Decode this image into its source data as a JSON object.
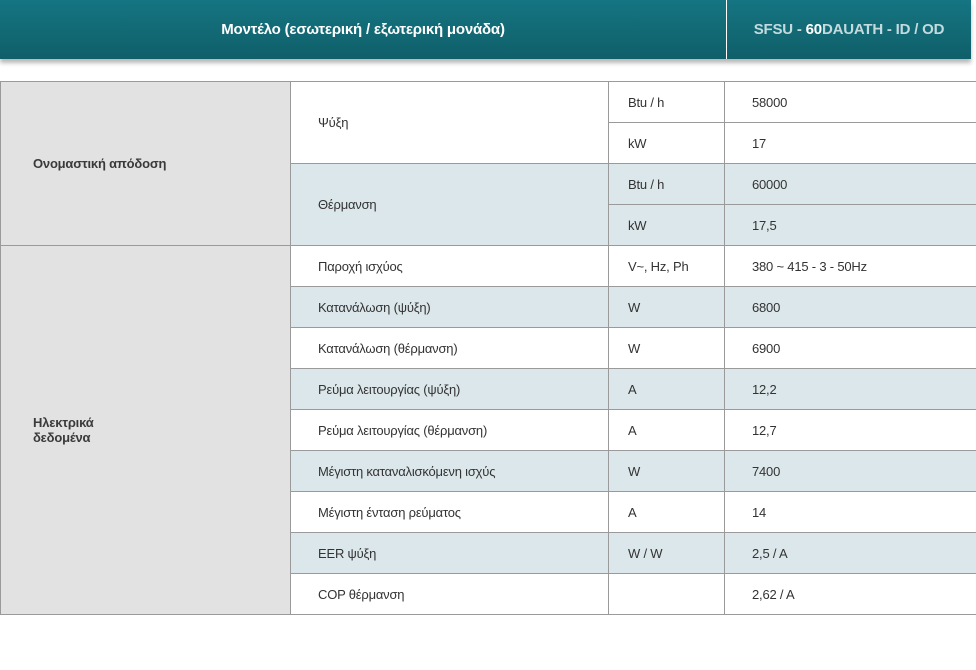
{
  "header": {
    "title": "Μοντέλο (εσωτερική / εξωτερική μονάδα)",
    "model_prefix": "SFSU - ",
    "model_bold": "60",
    "model_suffix": "DAUATH - ID / OD"
  },
  "groups": {
    "rated_performance": "Ονομαστική απόδοση",
    "electrical_data_line1": "Ηλεκτρικά",
    "electrical_data_line2": "δεδομένα"
  },
  "rows": [
    {
      "param": "Ψύξη",
      "unit": "Btu / h",
      "value": "58000"
    },
    {
      "unit": "kW",
      "value": "17"
    },
    {
      "param": "Θέρμανση",
      "unit": "Btu / h",
      "value": "60000"
    },
    {
      "unit": "kW",
      "value": "17,5"
    },
    {
      "param": "Παροχή ισχύος",
      "unit": "V~, Hz, Ph",
      "value": "380 ~ 415 - 3 - 50Hz"
    },
    {
      "param": "Κατανάλωση (ψύξη)",
      "unit": "W",
      "value": "6800"
    },
    {
      "param": "Κατανάλωση (θέρμανση)",
      "unit": "W",
      "value": "6900"
    },
    {
      "param": "Ρεύμα λειτουργίας (ψύξη)",
      "unit": "A",
      "value": "12,2"
    },
    {
      "param": "Ρεύμα λειτουργίας (θέρμανση)",
      "unit": "A",
      "value": "12,7"
    },
    {
      "param": "Μέγιστη καταναλισκόμενη ισχύς",
      "unit": "W",
      "value": "7400"
    },
    {
      "param": "Μέγιστη ένταση ρεύματος",
      "unit": "A",
      "value": "14"
    },
    {
      "param": "EER ψύξη",
      "unit": "W / W",
      "value": "2,5 / A"
    },
    {
      "param": "COP θέρμανση",
      "unit": "",
      "value": "2,62 / A"
    }
  ],
  "colors": {
    "header_bg": "#157582",
    "row_shade": "#dce7eb",
    "group_bg": "#e2e2e2"
  }
}
